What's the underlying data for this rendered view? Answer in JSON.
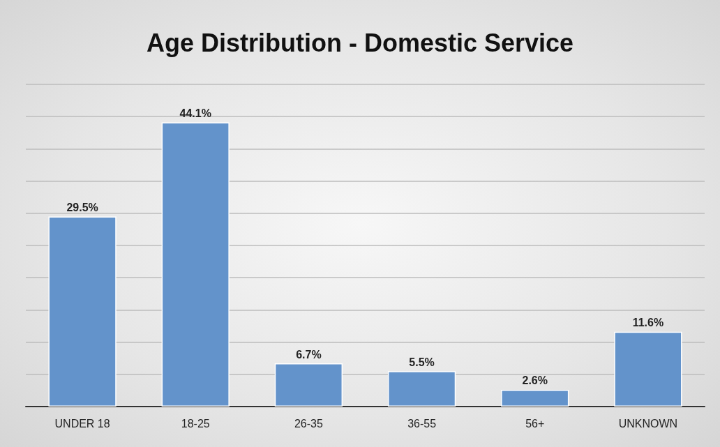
{
  "chart_data": {
    "type": "bar",
    "title": "Age Distribution - Domestic Service",
    "categories": [
      "UNDER 18",
      "18-25",
      "26-35",
      "36-55",
      "56+",
      "UNKNOWN"
    ],
    "values": [
      29.5,
      44.1,
      6.7,
      5.5,
      2.6,
      11.6
    ],
    "value_labels": [
      "29.5%",
      "44.1%",
      "6.7%",
      "5.5%",
      "2.6%",
      "11.6%"
    ],
    "color": "#6393cb",
    "ylim": [
      0,
      50
    ],
    "yticks": [
      {
        "value": 0,
        "label": null
      },
      {
        "value": 5,
        "label": null
      },
      {
        "value": 10,
        "label": null
      },
      {
        "value": 15,
        "label": null
      },
      {
        "value": 20,
        "label": null
      },
      {
        "value": 25,
        "label": null
      },
      {
        "value": 30,
        "label": null
      },
      {
        "value": 35,
        "label": null
      },
      {
        "value": 40,
        "label": null
      },
      {
        "value": 45,
        "label": null
      },
      {
        "value": 50,
        "label": null
      }
    ],
    "tick_labels": "x",
    "grid": "y"
  }
}
